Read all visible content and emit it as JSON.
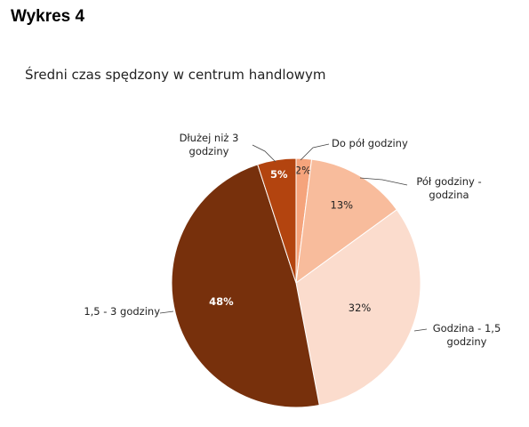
{
  "header": "Wykres 4",
  "chart_data": {
    "type": "pie",
    "title": "Średni czas spędzony w centrum handlowym",
    "categories": [
      "Do pół godziny",
      "Pół godziny - godzina",
      "Godzina - 1,5 godziny",
      "1,5 - 3 godziny",
      "Dłużej niż 3 godziny"
    ],
    "values": [
      2,
      13,
      32,
      48,
      5
    ],
    "value_labels": [
      "2%",
      "13%",
      "32%",
      "48%",
      "5%"
    ],
    "colors": [
      "#f5a47c",
      "#f8bc9c",
      "#fbdccd",
      "#77300c",
      "#b3440f"
    ],
    "label_colors": [
      "#222222",
      "#222222",
      "#222222",
      "#ffffff",
      "#ffffff"
    ]
  }
}
